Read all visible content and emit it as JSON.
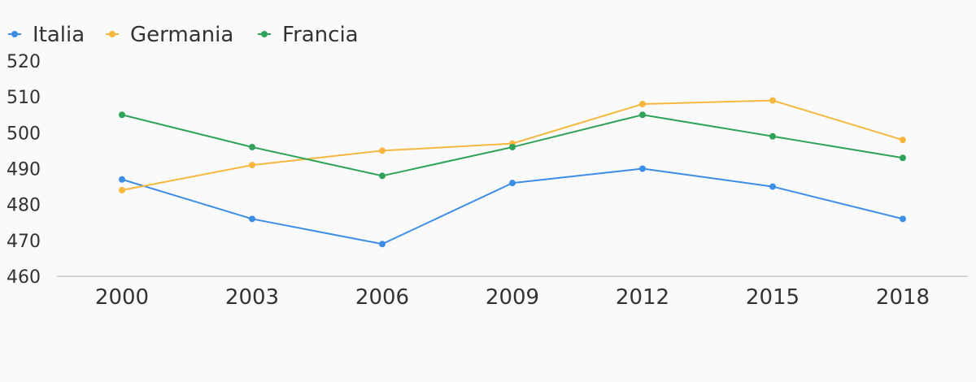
{
  "chart_data": {
    "type": "line",
    "title": "",
    "xlabel": "",
    "ylabel": "",
    "categories": [
      "2000",
      "2003",
      "2006",
      "2009",
      "2012",
      "2015",
      "2018"
    ],
    "ylim": [
      460,
      520
    ],
    "yticks": [
      460,
      470,
      480,
      490,
      500,
      510,
      520
    ],
    "grid": false,
    "legend_position": "top-left",
    "series": [
      {
        "name": "Italia",
        "color": "#3b8de6",
        "values": [
          487,
          476,
          469,
          486,
          490,
          485,
          476
        ]
      },
      {
        "name": "Germania",
        "color": "#f7b73e",
        "values": [
          484,
          491,
          495,
          497,
          508,
          509,
          498
        ]
      },
      {
        "name": "Francia",
        "color": "#2fa35a",
        "values": [
          505,
          496,
          488,
          496,
          505,
          499,
          493
        ]
      }
    ]
  },
  "colors": {
    "background": "#fafafa",
    "axis": "#d4d4d4",
    "text": "#333333"
  }
}
